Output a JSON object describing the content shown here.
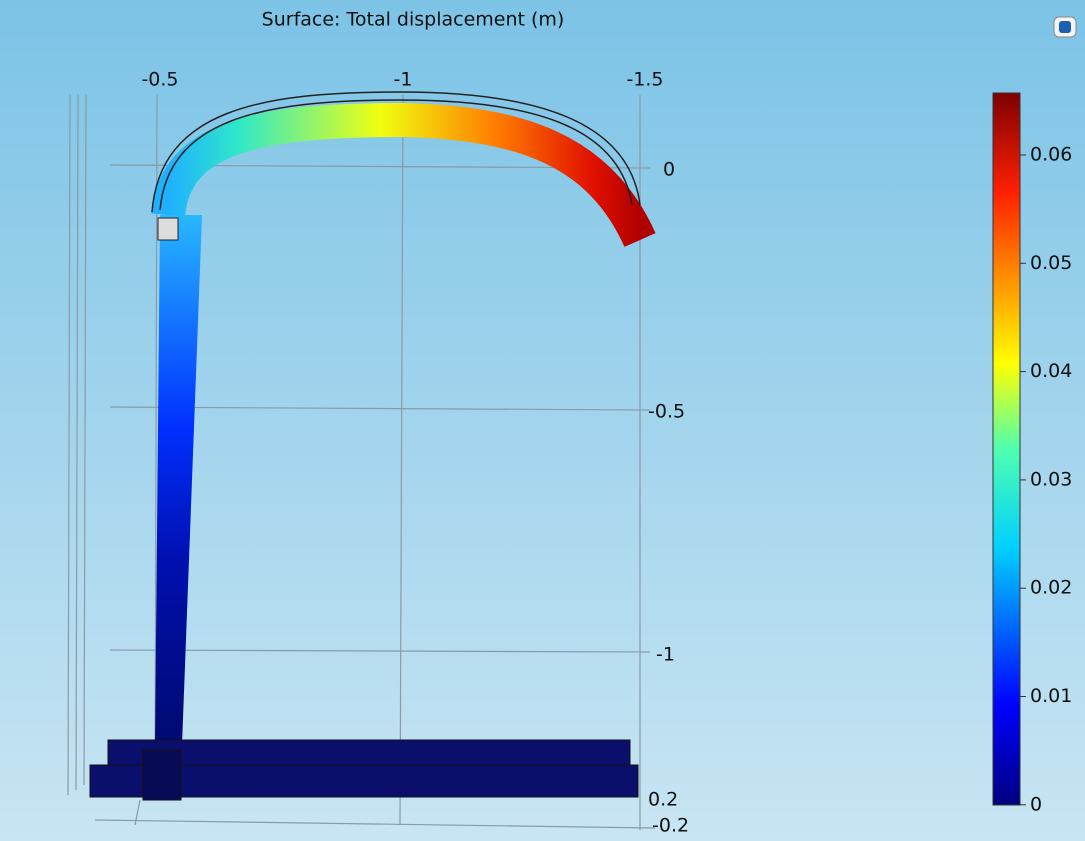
{
  "header": {
    "title": "Surface: Total displacement (m)"
  },
  "axes": {
    "top_labels": [
      "-0.5",
      "-1",
      "-1.5"
    ],
    "right_labels": [
      "0",
      "-0.5",
      "-1"
    ],
    "bottom_labels": [
      "0.2",
      "-0.2"
    ]
  },
  "colorbar": {
    "labels": [
      "0.06",
      "0.05",
      "0.04",
      "0.03",
      "0.02",
      "0.01",
      "0"
    ]
  }
}
